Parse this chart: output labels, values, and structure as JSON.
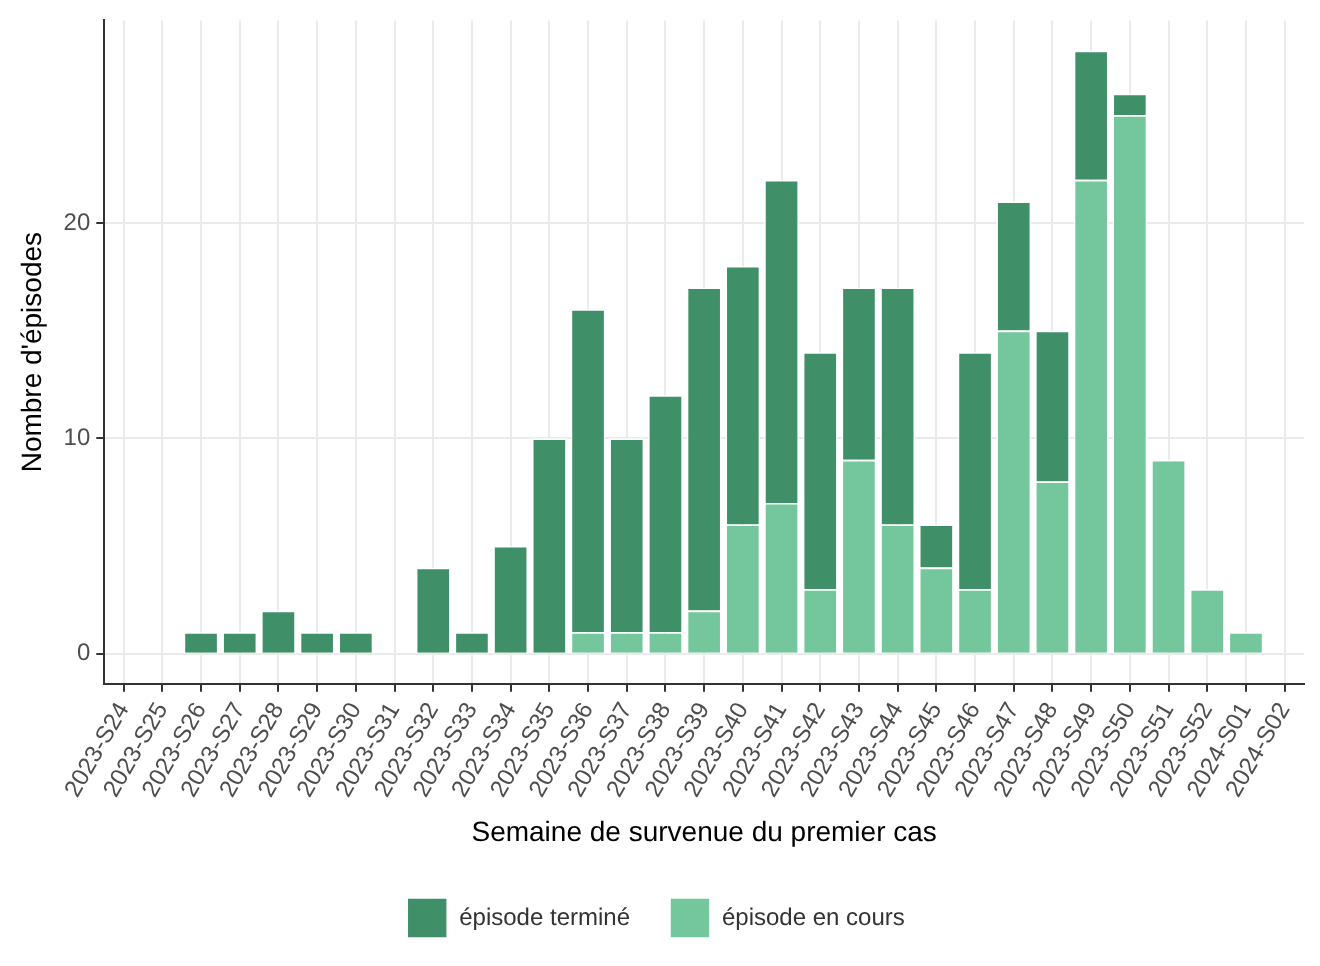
{
  "chart_data": {
    "type": "bar",
    "xlabel": "Semaine de survenue du premier cas",
    "ylabel": "Nombre d'épisodes",
    "categories": [
      "2023-S24",
      "2023-S25",
      "2023-S26",
      "2023-S27",
      "2023-S28",
      "2023-S29",
      "2023-S30",
      "2023-S31",
      "2023-S32",
      "2023-S33",
      "2023-S34",
      "2023-S35",
      "2023-S36",
      "2023-S37",
      "2023-S38",
      "2023-S39",
      "2023-S40",
      "2023-S41",
      "2023-S42",
      "2023-S43",
      "2023-S44",
      "2023-S45",
      "2023-S46",
      "2023-S47",
      "2023-S48",
      "2023-S49",
      "2023-S50",
      "2023-S51",
      "2023-S52",
      "2024-S01",
      "2024-S02"
    ],
    "series": [
      {
        "name": "épisode en cours",
        "color": "#74c69d",
        "values": [
          0,
          0,
          0,
          0,
          0,
          0,
          0,
          0,
          0,
          0,
          0,
          0,
          1,
          1,
          1,
          2,
          6,
          7,
          3,
          9,
          6,
          4,
          3,
          15,
          8,
          22,
          25,
          9,
          3,
          1,
          0
        ]
      },
      {
        "name": "épisode terminé",
        "color": "#3f8f69",
        "values": [
          0,
          0,
          1,
          1,
          2,
          1,
          1,
          0,
          4,
          1,
          5,
          10,
          15,
          9,
          11,
          15,
          12,
          15,
          11,
          8,
          11,
          2,
          11,
          6,
          7,
          6,
          1,
          0,
          0,
          0,
          0
        ]
      }
    ],
    "stacked": true,
    "ylim": [
      -1.4,
      29.4
    ],
    "yticks": [
      0,
      10,
      20
    ],
    "grid": true,
    "legend": "bottom"
  }
}
